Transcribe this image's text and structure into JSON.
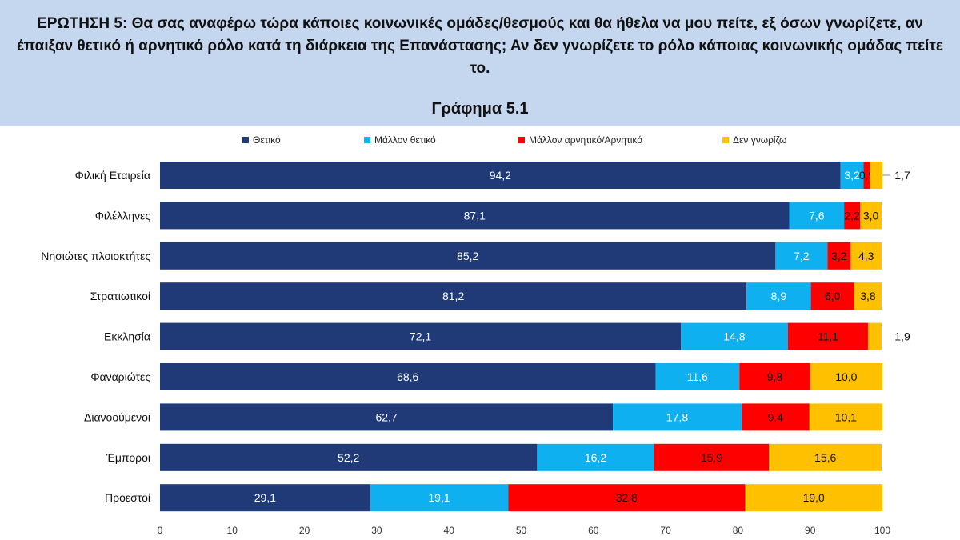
{
  "header": {
    "question": "ΕΡΩΤΗΣΗ 5: Θα σας αναφέρω τώρα κάποιες κοινωνικές ομάδες/θεσμούς και θα ήθελα να μου πείτε, εξ όσων γνωρίζετε, αν έπαιξαν θετικό ή αρνητικό ρόλο κατά τη διάρκεια της Επανάστασης; Αν δεν γνωρίζετε το ρόλο κάποιας κοινωνικής ομάδας πείτε το.",
    "figure_title": "Γράφημα 5.1"
  },
  "chart_data": {
    "type": "bar",
    "orientation": "horizontal",
    "stacked": true,
    "title": "Γράφημα 5.1",
    "categories": [
      "Φιλική Εταιρεία",
      "Φιλέλληνες",
      "Νησιώτες πλοιοκτήτες",
      "Στρατιωτικοί",
      "Εκκλησία",
      "Φαναριώτες",
      "Διανοούμενοι",
      "Έμποροι",
      "Προεστοί"
    ],
    "series": [
      {
        "name": "Θετικό",
        "color": "#1f3a77",
        "label_color": "#ffffff",
        "values": [
          94.2,
          87.1,
          85.2,
          81.2,
          72.1,
          68.6,
          62.7,
          52.2,
          29.1
        ],
        "labels": [
          "94,2",
          "87,1",
          "85,2",
          "81,2",
          "72,1",
          "68,6",
          "62,7",
          "52,2",
          "29,1"
        ]
      },
      {
        "name": "Μάλλον θετικό",
        "color": "#0fb0f0",
        "label_color": "#ffffff",
        "values": [
          3.2,
          7.6,
          7.2,
          8.9,
          14.8,
          11.6,
          17.8,
          16.2,
          19.1
        ],
        "labels": [
          "3,2",
          "7,6",
          "7,2",
          "8,9",
          "14,8",
          "11,6",
          "17,8",
          "16,2",
          "19,1"
        ]
      },
      {
        "name": "Μάλλον αρνητικό/Αρνητικό",
        "color": "#ff0000",
        "label_color": "#111111",
        "values": [
          0.9,
          2.2,
          3.2,
          6.0,
          11.1,
          9.8,
          9.4,
          15.9,
          32.8
        ],
        "labels": [
          "0,9",
          "2,2",
          "3,2",
          "6,0",
          "11,1",
          "9,8",
          "9,4",
          "15,9",
          "32,8"
        ]
      },
      {
        "name": "Δεν γνωρίζω",
        "color": "#ffc000",
        "label_color": "#111111",
        "values": [
          1.7,
          3.0,
          4.3,
          3.8,
          1.9,
          10.0,
          10.1,
          15.6,
          19.0
        ],
        "labels": [
          "1,7",
          "3,0",
          "4,3",
          "3,8",
          "1,9",
          "10,0",
          "10,1",
          "15,6",
          "19,0"
        ]
      }
    ],
    "xlim": [
      0,
      100
    ],
    "xticks": [
      "0",
      "10",
      "20",
      "30",
      "40",
      "50",
      "60",
      "70",
      "80",
      "90",
      "100"
    ],
    "xlabel": "",
    "ylabel": "",
    "legend_position": "top",
    "grid": false
  }
}
